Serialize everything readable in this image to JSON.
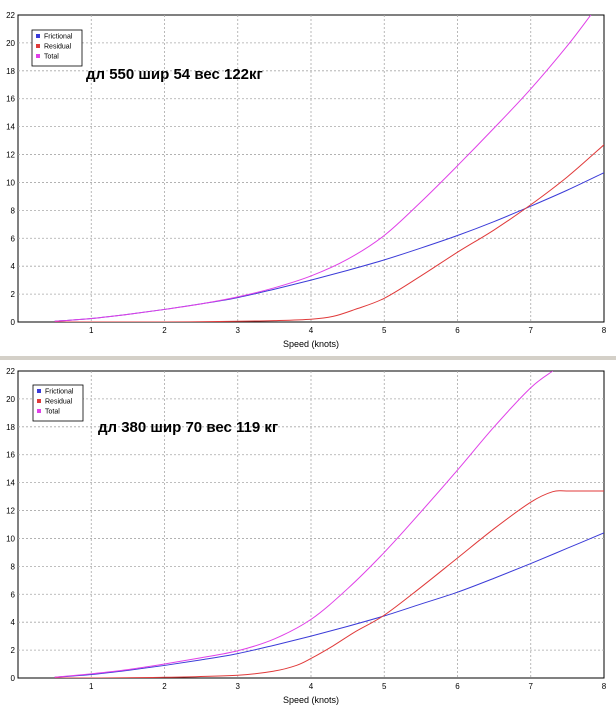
{
  "chart_data": [
    {
      "type": "line",
      "title": "",
      "xlabel": "Speed (knots)",
      "ylabel": "",
      "xlim": [
        0,
        8
      ],
      "ylim": [
        0,
        22
      ],
      "x_ticks": [
        "1",
        "2",
        "3",
        "4",
        "5",
        "6",
        "7",
        "8"
      ],
      "y_ticks": [
        "0",
        "2",
        "4",
        "6",
        "8",
        "10",
        "12",
        "14",
        "16",
        "18",
        "20",
        "22"
      ],
      "grid": true,
      "legend_position": "top-left",
      "annotation": "дл 550  шир 54  вес 122кг",
      "series": [
        {
          "name": "Frictional",
          "color": "#3b3bd8",
          "x": [
            0.5,
            1,
            1.5,
            2,
            2.5,
            3,
            3.5,
            4,
            4.5,
            5,
            5.5,
            6,
            6.5,
            7,
            7.5,
            8
          ],
          "y": [
            0.05,
            0.25,
            0.55,
            0.9,
            1.3,
            1.75,
            2.35,
            3.0,
            3.7,
            4.45,
            5.3,
            6.2,
            7.2,
            8.3,
            9.45,
            10.7
          ]
        },
        {
          "name": "Residual",
          "color": "#e03a3a",
          "x": [
            0.5,
            1,
            2,
            3,
            3.5,
            4,
            4.3,
            4.6,
            5,
            5.5,
            6,
            6.5,
            7,
            7.5,
            8
          ],
          "y": [
            0.0,
            0.0,
            0.0,
            0.05,
            0.1,
            0.2,
            0.4,
            0.9,
            1.7,
            3.3,
            5.0,
            6.6,
            8.4,
            10.4,
            12.7
          ]
        },
        {
          "name": "Total",
          "color": "#e040e8",
          "x": [
            0.5,
            1,
            1.5,
            2,
            2.5,
            3,
            3.5,
            4,
            4.5,
            5,
            5.5,
            6,
            6.5,
            7,
            7.5,
            7.82
          ],
          "y": [
            0.05,
            0.25,
            0.55,
            0.9,
            1.3,
            1.8,
            2.45,
            3.3,
            4.5,
            6.2,
            8.6,
            11.2,
            13.9,
            16.7,
            19.8,
            22
          ]
        }
      ]
    },
    {
      "type": "line",
      "title": "",
      "xlabel": "Speed (knots)",
      "ylabel": "",
      "xlim": [
        0,
        8
      ],
      "ylim": [
        0,
        22
      ],
      "x_ticks": [
        "1",
        "2",
        "3",
        "4",
        "5",
        "6",
        "7",
        "8"
      ],
      "y_ticks": [
        "0",
        "2",
        "4",
        "6",
        "8",
        "10",
        "12",
        "14",
        "16",
        "18",
        "20",
        "22"
      ],
      "grid": true,
      "legend_position": "top-left",
      "annotation": "дл 380  шир 70  вес 119 кг",
      "series": [
        {
          "name": "Frictional",
          "color": "#3b3bd8",
          "x": [
            0.5,
            1,
            1.5,
            2,
            2.5,
            3,
            3.5,
            4,
            4.5,
            5,
            5.5,
            6,
            6.5,
            7,
            7.5,
            8
          ],
          "y": [
            0.05,
            0.25,
            0.55,
            0.9,
            1.3,
            1.75,
            2.35,
            3.0,
            3.7,
            4.45,
            5.3,
            6.15,
            7.15,
            8.2,
            9.3,
            10.4
          ]
        },
        {
          "name": "Residual",
          "color": "#e03a3a",
          "x": [
            0.5,
            1,
            2,
            3,
            3.5,
            3.8,
            4,
            4.3,
            4.6,
            5,
            5.5,
            6,
            6.5,
            7,
            7.3,
            7.5,
            8
          ],
          "y": [
            0.0,
            0.0,
            0.05,
            0.2,
            0.5,
            0.9,
            1.4,
            2.3,
            3.3,
            4.5,
            6.5,
            8.6,
            10.7,
            12.6,
            13.35,
            13.4,
            13.4
          ]
        },
        {
          "name": "Total",
          "color": "#e040e8",
          "x": [
            0.5,
            1,
            1.5,
            2,
            2.5,
            3,
            3.5,
            4,
            4.5,
            5,
            5.5,
            6,
            6.5,
            7,
            7.3
          ],
          "y": [
            0.05,
            0.3,
            0.6,
            1.0,
            1.45,
            1.95,
            2.8,
            4.2,
            6.4,
            9.0,
            11.9,
            14.9,
            18.0,
            20.8,
            22
          ]
        }
      ]
    }
  ]
}
